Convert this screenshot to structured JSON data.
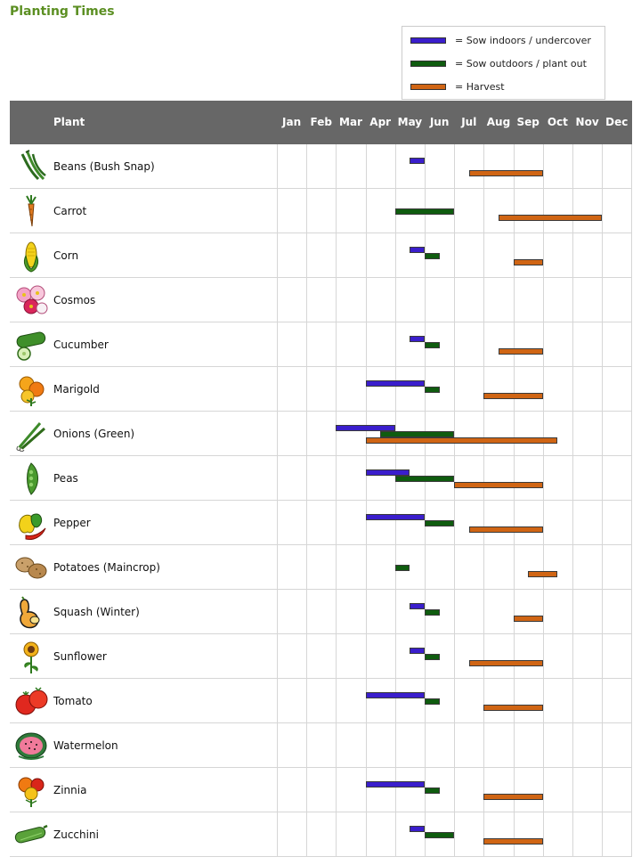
{
  "page": {
    "title": "Planting Times"
  },
  "colors": {
    "sow_indoors": "#3a1ecc",
    "sow_outdoors": "#0f5c0f",
    "harvest": "#d06514",
    "title": "#5b8f22",
    "header_bg": "#676767"
  },
  "legend": [
    {
      "key": "sow_indoors",
      "label": "= Sow indoors / undercover"
    },
    {
      "key": "sow_outdoors",
      "label": "= Sow outdoors / plant out"
    },
    {
      "key": "harvest",
      "label": "= Harvest"
    }
  ],
  "chart_data": {
    "type": "table",
    "title": "Planting Times",
    "plant_header": "Plant",
    "months": [
      "Jan",
      "Feb",
      "Mar",
      "Apr",
      "May",
      "Jun",
      "Jul",
      "Aug",
      "Sep",
      "Oct",
      "Nov",
      "Dec"
    ],
    "units": "month index (0 = start of Jan, 12 = end of Dec)",
    "plants": [
      {
        "name": "Beans (Bush Snap)",
        "icon": "beans-icon",
        "sow_indoors": [
          [
            4.5,
            5.0
          ]
        ],
        "sow_outdoors": [],
        "harvest": [
          [
            6.5,
            9.0
          ]
        ]
      },
      {
        "name": "Carrot",
        "icon": "carrot-icon",
        "sow_indoors": [],
        "sow_outdoors": [
          [
            4.0,
            6.0
          ]
        ],
        "harvest": [
          [
            7.5,
            11.0
          ]
        ]
      },
      {
        "name": "Corn",
        "icon": "corn-icon",
        "sow_indoors": [
          [
            4.5,
            5.0
          ]
        ],
        "sow_outdoors": [
          [
            5.0,
            5.5
          ]
        ],
        "harvest": [
          [
            8.0,
            9.0
          ]
        ]
      },
      {
        "name": "Cosmos",
        "icon": "cosmos-icon",
        "sow_indoors": [],
        "sow_outdoors": [],
        "harvest": []
      },
      {
        "name": "Cucumber",
        "icon": "cucumber-icon",
        "sow_indoors": [
          [
            4.5,
            5.0
          ]
        ],
        "sow_outdoors": [
          [
            5.0,
            5.5
          ]
        ],
        "harvest": [
          [
            7.5,
            9.0
          ]
        ]
      },
      {
        "name": "Marigold",
        "icon": "marigold-icon",
        "sow_indoors": [
          [
            3.0,
            5.0
          ]
        ],
        "sow_outdoors": [
          [
            5.0,
            5.5
          ]
        ],
        "harvest": [
          [
            7.0,
            9.0
          ]
        ]
      },
      {
        "name": "Onions (Green)",
        "icon": "onions-icon",
        "sow_indoors": [
          [
            2.0,
            4.0
          ]
        ],
        "sow_outdoors": [
          [
            3.5,
            6.0
          ]
        ],
        "harvest": [
          [
            3.0,
            9.5
          ]
        ]
      },
      {
        "name": "Peas",
        "icon": "peas-icon",
        "sow_indoors": [
          [
            3.0,
            4.5
          ]
        ],
        "sow_outdoors": [
          [
            4.0,
            6.0
          ]
        ],
        "harvest": [
          [
            6.0,
            9.0
          ]
        ]
      },
      {
        "name": "Pepper",
        "icon": "pepper-icon",
        "sow_indoors": [
          [
            3.0,
            5.0
          ]
        ],
        "sow_outdoors": [
          [
            5.0,
            6.0
          ]
        ],
        "harvest": [
          [
            6.5,
            9.0
          ]
        ]
      },
      {
        "name": "Potatoes (Maincrop)",
        "icon": "potatoes-icon",
        "sow_indoors": [],
        "sow_outdoors": [
          [
            4.0,
            4.5
          ]
        ],
        "harvest": [
          [
            8.5,
            9.5
          ]
        ]
      },
      {
        "name": "Squash (Winter)",
        "icon": "squash-icon",
        "sow_indoors": [
          [
            4.5,
            5.0
          ]
        ],
        "sow_outdoors": [
          [
            5.0,
            5.5
          ]
        ],
        "harvest": [
          [
            8.0,
            9.0
          ]
        ]
      },
      {
        "name": "Sunflower",
        "icon": "sunflower-icon",
        "sow_indoors": [
          [
            4.5,
            5.0
          ]
        ],
        "sow_outdoors": [
          [
            5.0,
            5.5
          ]
        ],
        "harvest": [
          [
            6.5,
            9.0
          ]
        ]
      },
      {
        "name": "Tomato",
        "icon": "tomato-icon",
        "sow_indoors": [
          [
            3.0,
            5.0
          ]
        ],
        "sow_outdoors": [
          [
            5.0,
            5.5
          ]
        ],
        "harvest": [
          [
            7.0,
            9.0
          ]
        ]
      },
      {
        "name": "Watermelon",
        "icon": "watermelon-icon",
        "sow_indoors": [],
        "sow_outdoors": [],
        "harvest": []
      },
      {
        "name": "Zinnia",
        "icon": "zinnia-icon",
        "sow_indoors": [
          [
            3.0,
            5.0
          ]
        ],
        "sow_outdoors": [
          [
            5.0,
            5.5
          ]
        ],
        "harvest": [
          [
            7.0,
            9.0
          ]
        ]
      },
      {
        "name": "Zucchini",
        "icon": "zucchini-icon",
        "sow_indoors": [
          [
            4.5,
            5.0
          ]
        ],
        "sow_outdoors": [
          [
            5.0,
            6.0
          ]
        ],
        "harvest": [
          [
            7.0,
            9.0
          ]
        ]
      }
    ]
  }
}
